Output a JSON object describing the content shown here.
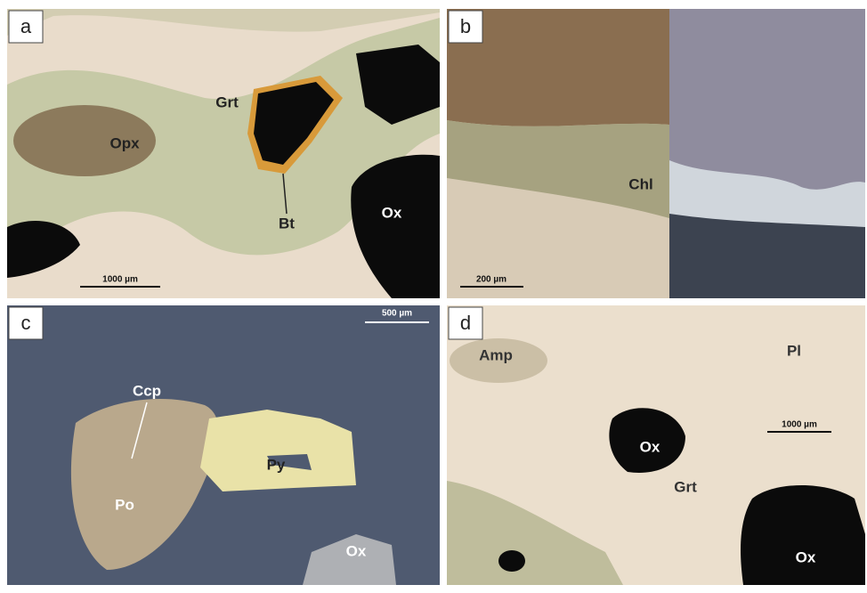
{
  "panels": [
    {
      "letter": "a",
      "labels": [
        "Grt",
        "Opx",
        "Bt",
        "Ox"
      ],
      "scale_bar": "1000 µm"
    },
    {
      "letter": "b",
      "labels": [
        "Chl"
      ],
      "scale_bar": "200 µm"
    },
    {
      "letter": "c",
      "labels": [
        "Ccp",
        "Py",
        "Po",
        "Ox"
      ],
      "scale_bar": "500 µm"
    },
    {
      "letter": "d",
      "labels": [
        "Amp",
        "Pl",
        "Ox",
        "Grt",
        "Ox"
      ],
      "scale_bar": "1000 µm"
    }
  ]
}
